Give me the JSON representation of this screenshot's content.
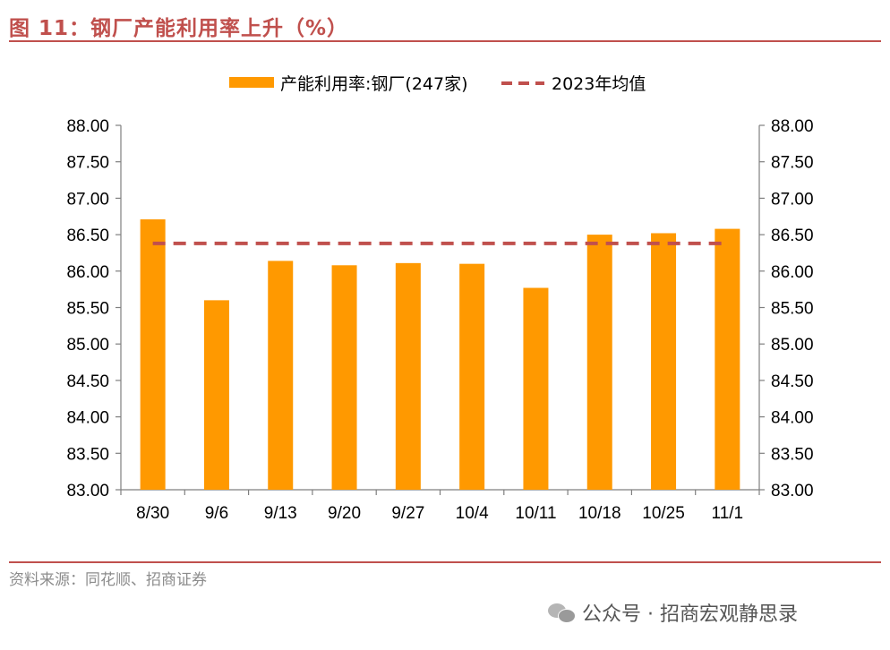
{
  "figure": {
    "title": "图 11：钢厂产能利用率上升（%）",
    "source": "资料来源：同花顺、招商证券",
    "watermark": "公众号 · 招商宏观静思录",
    "watermark_icon": "wechat-icon"
  },
  "colors": {
    "accent": "#C0504D",
    "bar": "#FF9900",
    "avg_line": "#C0504D",
    "axis": "#7f7f7f"
  },
  "chart_data": {
    "type": "bar",
    "categories": [
      "8/30",
      "9/6",
      "9/13",
      "9/20",
      "9/27",
      "10/4",
      "10/11",
      "10/18",
      "10/25",
      "11/1"
    ],
    "series": [
      {
        "name": "产能利用率:钢厂(247家)",
        "type": "bar",
        "values": [
          86.71,
          85.6,
          86.14,
          86.08,
          86.11,
          86.1,
          85.77,
          86.5,
          86.52,
          86.58
        ]
      },
      {
        "name": "2023年均值",
        "type": "line",
        "style": "dashed",
        "values": [
          86.38,
          86.38,
          86.38,
          86.38,
          86.38,
          86.38,
          86.38,
          86.38,
          86.38,
          86.38
        ]
      }
    ],
    "ylim": [
      83.0,
      88.0
    ],
    "yticks": [
      "83.00",
      "83.50",
      "84.00",
      "84.50",
      "85.00",
      "85.50",
      "86.00",
      "86.50",
      "87.00",
      "87.50",
      "88.00"
    ],
    "y_right_same_as_left": true,
    "grid": false,
    "legend_position": "top-center",
    "xlabel": "",
    "ylabel": ""
  }
}
